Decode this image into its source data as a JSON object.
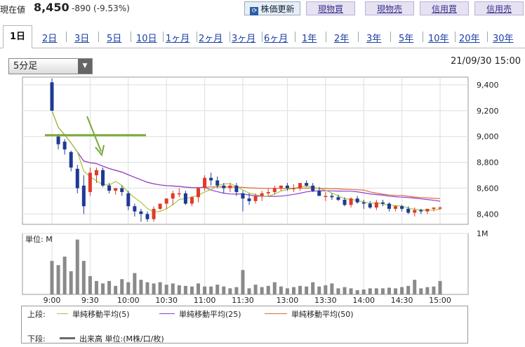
{
  "header": {
    "price_label": "現在値",
    "price": "8,450",
    "change": "-890 (-9.53%)",
    "refresh_label": "株価更新",
    "refresh_icon": "refresh-icon",
    "trade_buttons": [
      "現物買",
      "現物売",
      "信用買",
      "信用売"
    ]
  },
  "tabs": [
    "1日",
    "2日",
    "3日",
    "5日",
    "10日",
    "1ヶ月",
    "2ヶ月",
    "3ヶ月",
    "6ヶ月",
    "1年",
    "2年",
    "3年",
    "5年",
    "10年",
    "20年",
    "30年"
  ],
  "active_tab": "1日",
  "interval_select": {
    "value": "5分足"
  },
  "datetime": "21/09/30 15:00",
  "colors": {
    "up": "#e03a2a",
    "down": "#1f3a93",
    "ma5": "#a6c83a",
    "ma25": "#8a3fd1",
    "ma50": "#e0673a",
    "volume": "#8a8a8a",
    "annotation": "#7aaa3a"
  },
  "chart_data": [
    {
      "type": "candlestick",
      "x": [
        "9:00",
        "9:05",
        "9:10",
        "9:15",
        "9:20",
        "9:25",
        "9:30",
        "9:35",
        "9:40",
        "9:45",
        "9:50",
        "9:55",
        "10:00",
        "10:05",
        "10:10",
        "10:15",
        "10:20",
        "10:25",
        "10:30",
        "10:35",
        "10:40",
        "10:45",
        "10:50",
        "10:55",
        "11:00",
        "11:05",
        "11:10",
        "11:15",
        "11:20",
        "11:25",
        "11:30",
        "12:30",
        "12:35",
        "12:40",
        "12:45",
        "12:50",
        "12:55",
        "13:00",
        "13:05",
        "13:10",
        "13:15",
        "13:20",
        "13:25",
        "13:30",
        "13:35",
        "13:40",
        "13:45",
        "13:50",
        "13:55",
        "14:00",
        "14:05",
        "14:10",
        "14:15",
        "14:20",
        "14:25",
        "14:30",
        "14:35",
        "14:40",
        "14:45",
        "14:50",
        "14:55",
        "15:00"
      ],
      "open": [
        9420,
        9000,
        8960,
        8880,
        8750,
        8620,
        8570,
        8700,
        8740,
        8620,
        8580,
        8600,
        8560,
        8460,
        8420,
        8400,
        8360,
        8440,
        8480,
        8520,
        8560,
        8560,
        8480,
        8530,
        8600,
        8680,
        8660,
        8620,
        8600,
        8620,
        8560,
        8520,
        8500,
        8540,
        8560,
        8570,
        8600,
        8620,
        8600,
        8600,
        8640,
        8620,
        8580,
        8540,
        8540,
        8530,
        8510,
        8470,
        8520,
        8490,
        8480,
        8450,
        8490,
        8480,
        8440,
        8460,
        8440,
        8410,
        8430,
        8420,
        8440,
        8450
      ],
      "high": [
        9450,
        9020,
        8980,
        8890,
        8780,
        8700,
        8760,
        8760,
        8760,
        8640,
        8600,
        8620,
        8580,
        8480,
        8440,
        8420,
        8460,
        8470,
        8520,
        8580,
        8600,
        8580,
        8540,
        8600,
        8700,
        8720,
        8690,
        8640,
        8640,
        8640,
        8580,
        8560,
        8560,
        8580,
        8600,
        8620,
        8620,
        8640,
        8630,
        8640,
        8660,
        8640,
        8610,
        8570,
        8560,
        8550,
        8530,
        8530,
        8540,
        8510,
        8500,
        8510,
        8510,
        8490,
        8470,
        8470,
        8460,
        8450,
        8440,
        8440,
        8450,
        8460
      ],
      "low": [
        9200,
        8900,
        8860,
        8730,
        8560,
        8400,
        8540,
        8640,
        8610,
        8560,
        8550,
        8540,
        8430,
        8380,
        8340,
        8340,
        8340,
        8430,
        8440,
        8470,
        8530,
        8470,
        8460,
        8490,
        8580,
        8620,
        8600,
        8560,
        8570,
        8540,
        8420,
        8470,
        8480,
        8500,
        8540,
        8550,
        8580,
        8580,
        8570,
        8580,
        8610,
        8570,
        8540,
        8500,
        8510,
        8500,
        8460,
        8450,
        8480,
        8440,
        8440,
        8430,
        8460,
        8420,
        8420,
        8420,
        8400,
        8380,
        8400,
        8400,
        8420,
        8430
      ],
      "close": [
        9200,
        8940,
        8900,
        8760,
        8600,
        8460,
        8720,
        8740,
        8620,
        8580,
        8600,
        8570,
        8460,
        8420,
        8400,
        8360,
        8440,
        8480,
        8520,
        8560,
        8560,
        8480,
        8530,
        8600,
        8680,
        8660,
        8620,
        8600,
        8620,
        8570,
        8520,
        8500,
        8540,
        8560,
        8570,
        8600,
        8620,
        8600,
        8600,
        8640,
        8620,
        8580,
        8540,
        8540,
        8530,
        8510,
        8470,
        8520,
        8490,
        8480,
        8450,
        8490,
        8480,
        8440,
        8460,
        8440,
        8410,
        8430,
        8420,
        8440,
        8450,
        8450
      ],
      "volume_M": [
        0.55,
        0.48,
        0.62,
        0.38,
        0.9,
        0.55,
        0.3,
        0.22,
        0.18,
        0.22,
        0.14,
        0.25,
        0.2,
        0.35,
        0.24,
        0.2,
        0.18,
        0.2,
        0.16,
        0.18,
        0.15,
        0.14,
        0.13,
        0.18,
        0.13,
        0.13,
        0.16,
        0.13,
        0.1,
        0.12,
        0.4,
        0.1,
        0.16,
        0.12,
        0.14,
        0.2,
        0.13,
        0.1,
        0.12,
        0.14,
        0.13,
        0.2,
        0.13,
        0.15,
        0.18,
        0.1,
        0.12,
        0.1,
        0.07,
        0.08,
        0.1,
        0.1,
        0.1,
        0.11,
        0.1,
        0.12,
        0.14,
        0.24,
        0.1,
        0.12,
        0.13,
        0.22
      ],
      "ylim": [
        8320,
        9460
      ],
      "yticks": [
        8400,
        8600,
        8800,
        9000,
        9200,
        9400
      ],
      "ytick_labels": [
        "8,400",
        "8,600",
        "8,800",
        "9,000",
        "9,200",
        "9,400"
      ],
      "xtick_labels": [
        "9:00",
        "9:30",
        "10:00",
        "10:30",
        "11:00",
        "11:30",
        "13:00",
        "13:30",
        "14:00",
        "14:30",
        "15:00"
      ],
      "annotation_line_value": 9010,
      "grid": true
    },
    {
      "type": "bar",
      "title": "単位: M",
      "ytick_labels": [
        "1M"
      ],
      "ylim": [
        0,
        1.0
      ]
    }
  ],
  "legend": {
    "upper_label": "上段:",
    "lower_label": "下段:",
    "items": [
      {
        "label": "単純移動平均(5)",
        "color": "#a6c83a"
      },
      {
        "label": "単純移動平均(25)",
        "color": "#8a3fd1"
      },
      {
        "label": "単純移動平均(50)",
        "color": "#e0673a"
      }
    ],
    "volume_item": "出来高 単位:(M株/口/枚)"
  }
}
